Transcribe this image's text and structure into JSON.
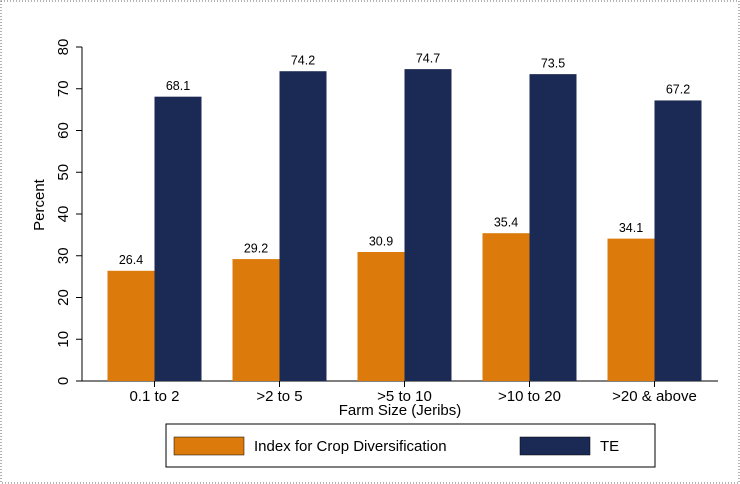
{
  "chart_data": {
    "type": "bar",
    "x_label": "Farm Size (Jeribs)",
    "y_label": "Percent",
    "categories": [
      "0.1 to 2",
      ">2 to 5",
      ">5 to 10",
      ">10 to 20",
      ">20 & above"
    ],
    "series": [
      {
        "name": "Index for Crop Diversification",
        "color": "#dc7a0c",
        "values": [
          26.4,
          29.2,
          30.9,
          35.4,
          34.1
        ]
      },
      {
        "name": "TE",
        "color": "#1b2a54",
        "values": [
          68.1,
          74.2,
          74.7,
          73.5,
          67.2
        ]
      }
    ],
    "ylim": [
      0,
      80
    ],
    "yticks": [
      0,
      10,
      20,
      30,
      40,
      50,
      60,
      70,
      80
    ],
    "grid": false,
    "legend": "bottom"
  }
}
